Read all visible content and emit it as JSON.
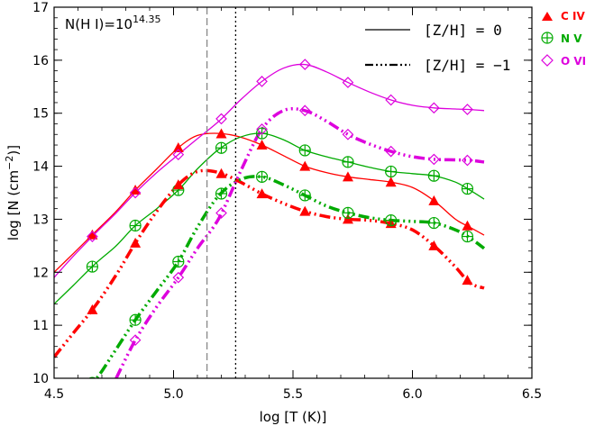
{
  "chart_data": {
    "type": "line",
    "xlabel_main": "log [T (K)]",
    "ylabel_main": "log [N (cm",
    "ylabel_exp": "−2",
    "ylabel_tail": ")]",
    "annotation_main": "N(H I)=10",
    "annotation_exp": "14.35",
    "xlim": [
      4.5,
      6.5
    ],
    "ylim": [
      10,
      17
    ],
    "xticks": [
      4.5,
      5.0,
      5.5,
      6.0,
      6.5
    ],
    "xtick_labels": [
      "4.5",
      "5.0",
      "5.5",
      "6.0",
      "6.5"
    ],
    "yticks": [
      10,
      11,
      12,
      13,
      14,
      15,
      16,
      17
    ],
    "ytick_labels": [
      "10",
      "11",
      "12",
      "13",
      "14",
      "15",
      "16",
      "17"
    ],
    "vlines": [
      {
        "x": 5.14,
        "style": "dashed",
        "color": "#888888"
      },
      {
        "x": 5.26,
        "style": "dotted",
        "color": "#000000"
      }
    ],
    "line_legend": [
      {
        "label": "[Z/H] = 0",
        "style": "solid"
      },
      {
        "label": "[Z/H] = −1",
        "style": "dashdotdot"
      }
    ],
    "ion_legend": [
      {
        "label": "C IV",
        "color": "#ff0000",
        "marker": "triangle"
      },
      {
        "label": "N V",
        "color": "#00aa00",
        "marker": "circleplus"
      },
      {
        "label": "O VI",
        "color": "#dd00dd",
        "marker": "diamond"
      }
    ],
    "series": [
      {
        "ion": "C IV",
        "metallicity": "0",
        "color": "#ff0000",
        "marker": "triangle",
        "x": [
          4.5,
          4.58,
          4.67,
          4.76,
          4.84,
          4.93,
          5.02,
          5.1,
          5.19,
          5.28,
          5.37,
          5.46,
          5.55,
          5.64,
          5.73,
          5.82,
          5.91,
          6.0,
          6.09,
          6.18,
          6.24,
          6.3
        ],
        "y": [
          12.0,
          12.35,
          12.75,
          13.15,
          13.55,
          13.95,
          14.35,
          14.58,
          14.62,
          14.55,
          14.4,
          14.2,
          14.0,
          13.88,
          13.8,
          13.75,
          13.7,
          13.6,
          13.35,
          13.0,
          12.85,
          12.7
        ],
        "marker_x": [
          4.66,
          4.84,
          5.02,
          5.2,
          5.37,
          5.55,
          5.73,
          5.91,
          6.09,
          6.23
        ]
      },
      {
        "ion": "N V",
        "metallicity": "0",
        "color": "#00aa00",
        "marker": "circleplus",
        "x": [
          4.5,
          4.58,
          4.67,
          4.76,
          4.84,
          4.93,
          5.02,
          5.1,
          5.19,
          5.28,
          5.37,
          5.46,
          5.55,
          5.64,
          5.73,
          5.82,
          5.91,
          6.0,
          6.09,
          6.18,
          6.24,
          6.3
        ],
        "y": [
          11.4,
          11.75,
          12.15,
          12.5,
          12.88,
          13.2,
          13.55,
          13.95,
          14.32,
          14.55,
          14.62,
          14.5,
          14.3,
          14.18,
          14.08,
          13.98,
          13.9,
          13.86,
          13.82,
          13.7,
          13.55,
          13.38
        ],
        "marker_x": [
          4.66,
          4.84,
          5.02,
          5.2,
          5.37,
          5.55,
          5.73,
          5.91,
          6.09,
          6.23
        ]
      },
      {
        "ion": "O VI",
        "metallicity": "0",
        "color": "#dd00dd",
        "marker": "diamond",
        "x": [
          4.5,
          4.58,
          4.67,
          4.76,
          4.84,
          4.93,
          5.02,
          5.1,
          5.19,
          5.28,
          5.37,
          5.46,
          5.55,
          5.64,
          5.73,
          5.82,
          5.91,
          6.0,
          6.09,
          6.18,
          6.24,
          6.3
        ],
        "y": [
          11.9,
          12.3,
          12.72,
          13.12,
          13.5,
          13.88,
          14.22,
          14.52,
          14.85,
          15.25,
          15.6,
          15.85,
          15.92,
          15.78,
          15.58,
          15.4,
          15.25,
          15.15,
          15.1,
          15.08,
          15.07,
          15.05
        ],
        "marker_x": [
          4.66,
          4.84,
          5.02,
          5.2,
          5.37,
          5.55,
          5.73,
          5.91,
          6.09,
          6.23
        ]
      },
      {
        "ion": "C IV",
        "metallicity": "-1",
        "color": "#ff0000",
        "marker": "triangle",
        "x": [
          4.5,
          4.58,
          4.67,
          4.76,
          4.84,
          4.93,
          5.02,
          5.1,
          5.19,
          5.28,
          5.37,
          5.46,
          5.55,
          5.64,
          5.73,
          5.82,
          5.91,
          6.0,
          6.09,
          6.18,
          6.24,
          6.3
        ],
        "y": [
          10.4,
          10.85,
          11.35,
          11.95,
          12.55,
          13.15,
          13.65,
          13.9,
          13.88,
          13.7,
          13.48,
          13.3,
          13.15,
          13.05,
          13.0,
          12.98,
          12.92,
          12.8,
          12.5,
          12.1,
          11.8,
          11.7
        ],
        "marker_x": [
          4.66,
          4.84,
          5.02,
          5.2,
          5.37,
          5.55,
          5.73,
          5.91,
          6.09,
          6.23
        ]
      },
      {
        "ion": "N V",
        "metallicity": "-1",
        "color": "#00aa00",
        "marker": "circleplus",
        "x": [
          4.6,
          4.67,
          4.76,
          4.84,
          4.93,
          5.02,
          5.1,
          5.19,
          5.28,
          5.37,
          5.46,
          5.55,
          5.64,
          5.73,
          5.82,
          5.91,
          6.0,
          6.09,
          6.18,
          6.24,
          6.3
        ],
        "y": [
          9.7,
          9.95,
          10.55,
          11.1,
          11.65,
          12.2,
          12.85,
          13.45,
          13.75,
          13.8,
          13.65,
          13.45,
          13.25,
          13.12,
          13.03,
          12.98,
          12.96,
          12.93,
          12.8,
          12.65,
          12.45
        ],
        "marker_x": [
          4.66,
          4.84,
          5.02,
          5.2,
          5.37,
          5.55,
          5.73,
          5.91,
          6.09,
          6.23
        ]
      },
      {
        "ion": "O VI",
        "metallicity": "-1",
        "color": "#dd00dd",
        "marker": "diamond",
        "x": [
          4.76,
          4.84,
          4.93,
          5.02,
          5.1,
          5.19,
          5.28,
          5.37,
          5.46,
          5.55,
          5.64,
          5.73,
          5.82,
          5.91,
          6.0,
          6.09,
          6.18,
          6.24,
          6.3
        ],
        "y": [
          10.0,
          10.72,
          11.35,
          11.9,
          12.45,
          13.02,
          13.9,
          14.7,
          15.05,
          15.05,
          14.85,
          14.6,
          14.42,
          14.28,
          14.18,
          14.13,
          14.12,
          14.11,
          14.08
        ],
        "marker_x": [
          4.84,
          5.02,
          5.2,
          5.37,
          5.55,
          5.73,
          5.91,
          6.09,
          6.23
        ]
      }
    ]
  }
}
